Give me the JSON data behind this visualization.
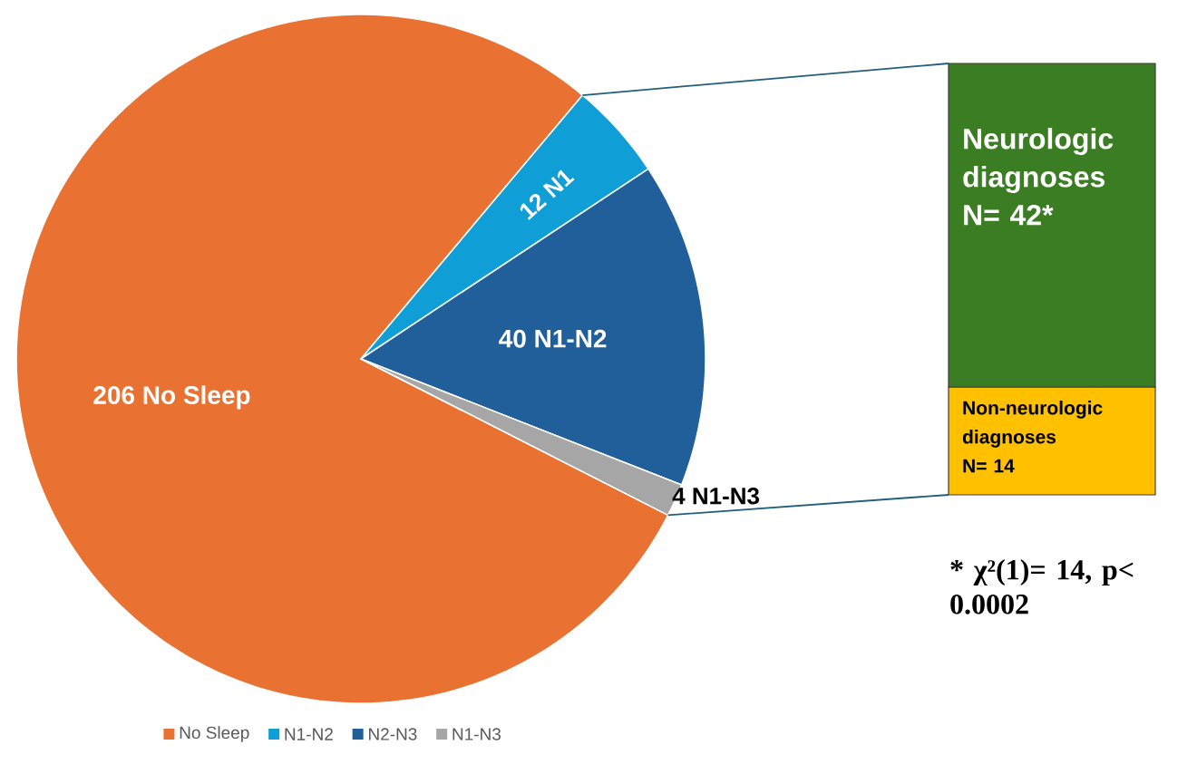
{
  "chart_data": [
    {
      "type": "pie",
      "categories": [
        "No Sleep",
        "N1-N2",
        "N2-N3",
        "N1-N3"
      ],
      "values": [
        206,
        12,
        40,
        4
      ],
      "colors": [
        "#e97132",
        "#0f9ed5",
        "#215f9a",
        "#a6a6a6"
      ],
      "value_labels": [
        "206 No Sleep",
        "12 N1",
        "40 N1-N2",
        "4 N1-N3"
      ],
      "legend": "bottom"
    },
    {
      "type": "bar",
      "stacked": true,
      "categories": [
        null
      ],
      "series": [
        {
          "name": "Non-neurologic diagnoses",
          "color": "#ffc000",
          "values": [
            14
          ],
          "value_labels": [
            "N= 14"
          ]
        },
        {
          "name": "Neurologic diagnoses",
          "color": "#3b7d23",
          "values": [
            42
          ],
          "value_labels": [
            "N= 42*"
          ]
        }
      ],
      "annotations": [
        "* χ²(1)= 14, p< 0.0002"
      ]
    }
  ]
}
